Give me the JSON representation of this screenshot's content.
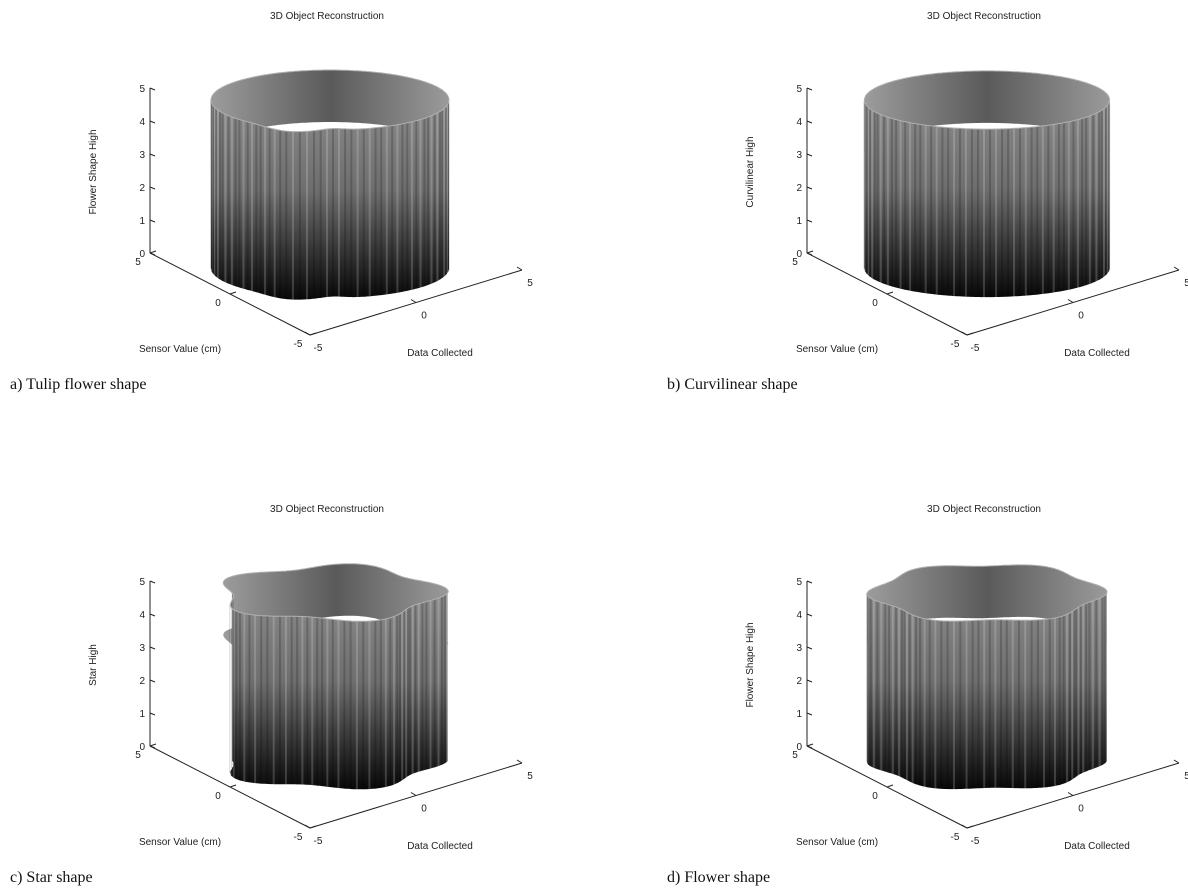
{
  "chart_data": [
    {
      "type": "surface3d",
      "title": "3D Object Reconstruction",
      "xlabel": "Sensor Value (cm)",
      "ylabel": "Data Collected",
      "zlabel": "Flower Shape High",
      "xlim": [
        -5,
        5
      ],
      "ylim": [
        -5,
        5
      ],
      "zlim": [
        0,
        5
      ],
      "x_ticks": [
        "-5",
        "0",
        "5"
      ],
      "y_ticks": [
        "-5",
        "0",
        "5"
      ],
      "z_ticks": [
        "0",
        "1",
        "2",
        "3",
        "4",
        "5"
      ],
      "caption": "a)  Tulip flower shape",
      "shape": "tulip",
      "radius": 4.2,
      "height": 5
    },
    {
      "type": "surface3d",
      "title": "3D Object Reconstruction",
      "xlabel": "Sensor Value (cm)",
      "ylabel": "Data Collected",
      "zlabel": "Curvilinear High",
      "xlim": [
        -5,
        5
      ],
      "ylim": [
        -5,
        5
      ],
      "zlim": [
        0,
        5
      ],
      "x_ticks": [
        "-5",
        "0",
        "5"
      ],
      "y_ticks": [
        "-5",
        "0",
        "5"
      ],
      "z_ticks": [
        "0",
        "1",
        "2",
        "3",
        "4",
        "5"
      ],
      "caption": "b)  Curvilinear shape",
      "shape": "curvilinear",
      "radius": 4.2,
      "height": 5
    },
    {
      "type": "surface3d",
      "title": "3D Object Reconstruction",
      "xlabel": "Sensor Value (cm)",
      "ylabel": "Data Collected",
      "zlabel": "Star High",
      "xlim": [
        -5,
        5
      ],
      "ylim": [
        -5,
        5
      ],
      "zlim": [
        0,
        5
      ],
      "x_ticks": [
        "-5",
        "0",
        "5"
      ],
      "y_ticks": [
        "-5",
        "0",
        "5"
      ],
      "z_ticks": [
        "0",
        "1",
        "2",
        "3",
        "4",
        "5"
      ],
      "caption": "c)  Star shape",
      "shape": "star",
      "radius": 3.8,
      "height": 5
    },
    {
      "type": "surface3d",
      "title": "3D Object Reconstruction",
      "xlabel": "Sensor Value (cm)",
      "ylabel": "Data Collected",
      "zlabel": "Flower Shape High",
      "xlim": [
        -5,
        5
      ],
      "ylim": [
        -5,
        5
      ],
      "zlim": [
        0,
        5
      ],
      "x_ticks": [
        "-5",
        "0",
        "5"
      ],
      "y_ticks": [
        "-5",
        "0",
        "5"
      ],
      "z_ticks": [
        "0",
        "1",
        "2",
        "3",
        "4",
        "5"
      ],
      "caption": "d)  Flower shape",
      "shape": "flower",
      "radius": 4.0,
      "height": 5
    }
  ]
}
